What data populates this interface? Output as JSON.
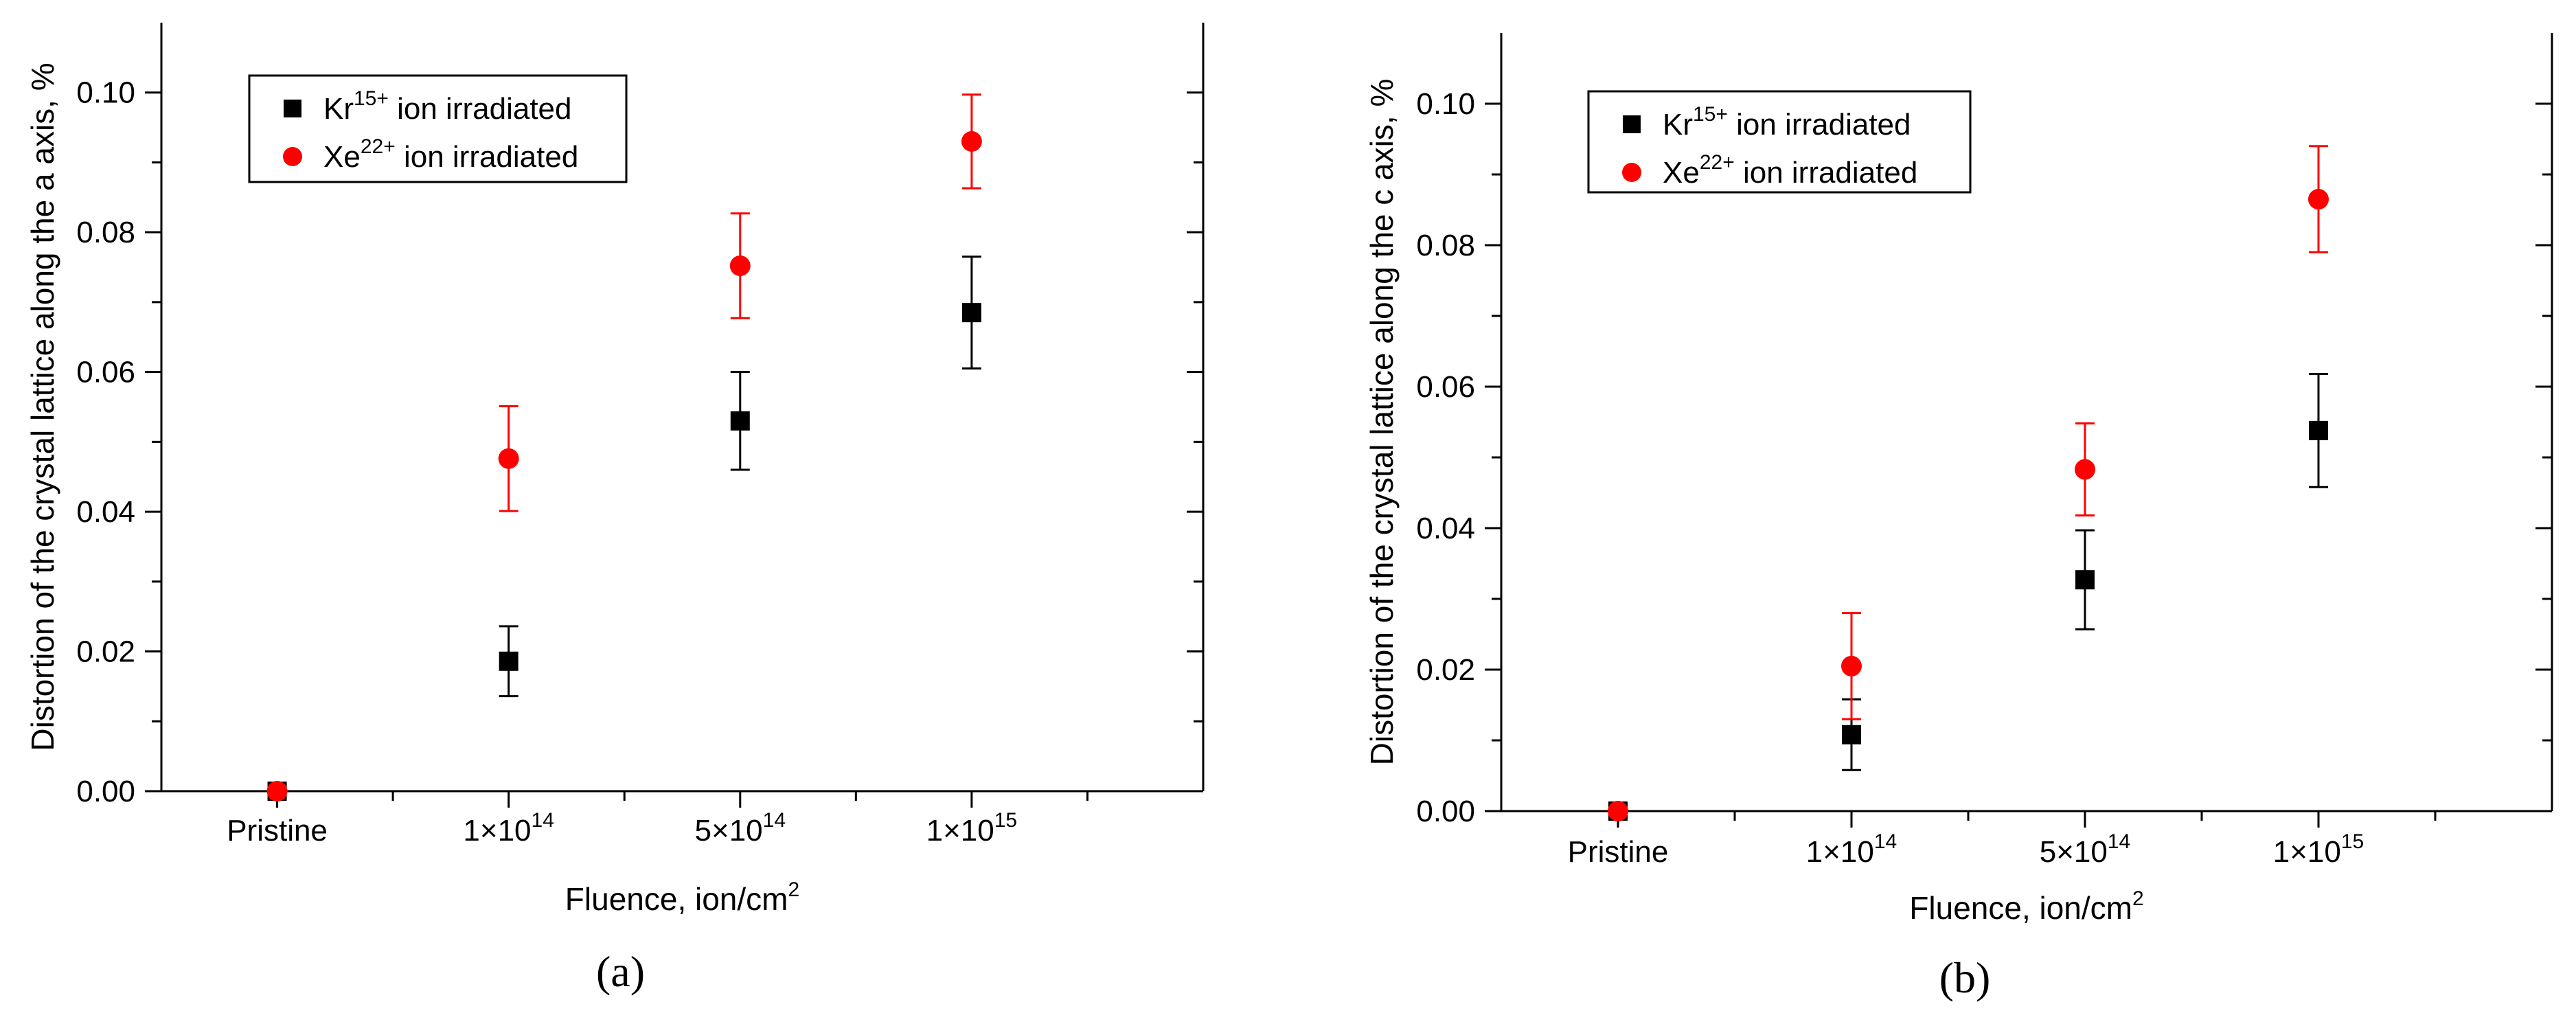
{
  "colors": {
    "series0": "#000000",
    "series1": "#ff0000"
  },
  "chart_data": [
    {
      "type": "scatter",
      "panel_label": "(a)",
      "xlabel": "Fluence, ion/cm",
      "xlabel_sup": "2",
      "ylabel": "Distortion of the crystal lattice along the a axis, %",
      "ylim": [
        0,
        0.11
      ],
      "yticks": [
        "0.00",
        "0.02",
        "0.04",
        "0.06",
        "0.08",
        "0.10"
      ],
      "categories": [
        {
          "base": "Pristine",
          "sup": ""
        },
        {
          "base": "1×10",
          "sup": "14"
        },
        {
          "base": "5×10",
          "sup": "14"
        },
        {
          "base": "1×10",
          "sup": "15"
        }
      ],
      "series": [
        {
          "name": "Kr",
          "sup": "15+",
          "suffix": " ion irradiated",
          "marker": "square",
          "values": [
            0.0,
            0.0186,
            0.053,
            0.0685
          ],
          "errors": [
            0,
            0.005,
            0.007,
            0.008
          ]
        },
        {
          "name": "Xe",
          "sup": "22+",
          "suffix": " ion irradiated",
          "marker": "circle",
          "values": [
            0.0,
            0.0476,
            0.0752,
            0.093
          ],
          "errors": [
            0,
            0.0075,
            0.0075,
            0.0067
          ]
        }
      ]
    },
    {
      "type": "scatter",
      "panel_label": "(b)",
      "xlabel": "Fluence, ion/cm",
      "xlabel_sup": "2",
      "ylabel": "Distortion of the crystal lattice along the c axis, %",
      "ylim": [
        0,
        0.11
      ],
      "yticks": [
        "0.00",
        "0.02",
        "0.04",
        "0.06",
        "0.08",
        "0.10"
      ],
      "categories": [
        {
          "base": "Pristine",
          "sup": ""
        },
        {
          "base": "1×10",
          "sup": "14"
        },
        {
          "base": "5×10",
          "sup": "14"
        },
        {
          "base": "1×10",
          "sup": "15"
        }
      ],
      "series": [
        {
          "name": "Kr",
          "sup": "15+",
          "suffix": " ion irradiated",
          "marker": "square",
          "values": [
            0.0,
            0.0108,
            0.0327,
            0.0538
          ],
          "errors": [
            0,
            0.005,
            0.007,
            0.008
          ]
        },
        {
          "name": "Xe",
          "sup": "22+",
          "suffix": " ion irradiated",
          "marker": "circle",
          "values": [
            0.0,
            0.0205,
            0.0483,
            0.0865
          ],
          "errors": [
            0,
            0.0075,
            0.0065,
            0.0075
          ]
        }
      ]
    }
  ]
}
